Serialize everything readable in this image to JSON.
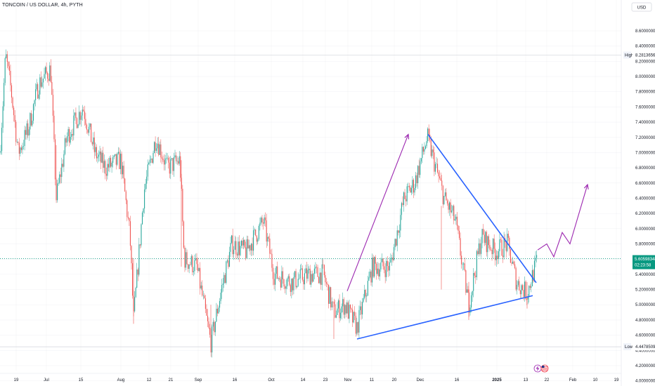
{
  "header": {
    "title": "TONCOIN / US DOLLAR, 4h, PYTH"
  },
  "currency": "USD",
  "colors": {
    "up": "#26a69a",
    "down": "#ef5350",
    "trendline": "#2962ff",
    "projection": "#9c27b0",
    "price_line": "#089981",
    "grid": "#e0e3eb"
  },
  "tags": {
    "high_label": "High",
    "high_value": "8.28136567",
    "low_label": "Low",
    "low_value": "4.44785095",
    "current_value": "5.60598348",
    "countdown": "02:23:58"
  },
  "event_icons": [
    "lightning-icon",
    "us-flag-icon"
  ],
  "chart_data": {
    "type": "candlestick",
    "title": "TONCOIN / US DOLLAR, 4h, PYTH",
    "y_axis": {
      "range": [
        4.0,
        8.7
      ],
      "ticks": [
        "8.60000000",
        "8.40000000",
        "8.20000000",
        "8.00000000",
        "7.80000000",
        "7.60000000",
        "7.40000000",
        "7.20000000",
        "7.00000000",
        "6.80000000",
        "6.60000000",
        "6.40000000",
        "6.20000000",
        "6.00000000",
        "5.80000000",
        "5.60000000",
        "5.40000000",
        "5.20000000",
        "5.00000000",
        "4.80000000",
        "4.60000000",
        "4.40000000",
        "4.20000000",
        "4.00000000"
      ],
      "tick_values": [
        8.6,
        8.4,
        8.2,
        8.0,
        7.8,
        7.6,
        7.4,
        7.2,
        7.0,
        6.8,
        6.6,
        6.4,
        6.2,
        6.0,
        5.8,
        5.6,
        5.4,
        5.2,
        5.0,
        4.8,
        4.6,
        4.4,
        4.2,
        4.0
      ]
    },
    "x_axis": {
      "labels": [
        "19",
        "Jul",
        "15",
        "Aug",
        "12",
        "21",
        "Sep",
        "16",
        "Oct",
        "14",
        "23",
        "Nov",
        "11",
        "20",
        "Dec",
        "16",
        "2025",
        "13",
        "22",
        "Feb",
        "10",
        "19"
      ],
      "bold": [
        "2025"
      ]
    },
    "high": 8.28136567,
    "low": 4.44785095,
    "last": 5.60598348,
    "price_path": [
      {
        "t": 0,
        "v": 7.0
      },
      {
        "t": 8,
        "v": 8.28
      },
      {
        "t": 16,
        "v": 7.8
      },
      {
        "t": 26,
        "v": 7.0
      },
      {
        "t": 40,
        "v": 7.3
      },
      {
        "t": 55,
        "v": 7.9
      },
      {
        "t": 72,
        "v": 8.1
      },
      {
        "t": 80,
        "v": 6.4
      },
      {
        "t": 95,
        "v": 7.2
      },
      {
        "t": 118,
        "v": 7.6
      },
      {
        "t": 135,
        "v": 7.0
      },
      {
        "t": 150,
        "v": 6.8
      },
      {
        "t": 172,
        "v": 6.9
      },
      {
        "t": 185,
        "v": 5.9
      },
      {
        "t": 190,
        "v": 4.8
      },
      {
        "t": 205,
        "v": 6.5
      },
      {
        "t": 222,
        "v": 7.2
      },
      {
        "t": 238,
        "v": 6.8
      },
      {
        "t": 256,
        "v": 6.9
      },
      {
        "t": 262,
        "v": 5.6
      },
      {
        "t": 280,
        "v": 5.5
      },
      {
        "t": 300,
        "v": 4.5
      },
      {
        "t": 315,
        "v": 5.2
      },
      {
        "t": 330,
        "v": 5.8
      },
      {
        "t": 350,
        "v": 5.7
      },
      {
        "t": 375,
        "v": 6.1
      },
      {
        "t": 390,
        "v": 5.4
      },
      {
        "t": 415,
        "v": 5.3
      },
      {
        "t": 440,
        "v": 5.4
      },
      {
        "t": 460,
        "v": 5.4
      },
      {
        "t": 475,
        "v": 4.9
      },
      {
        "t": 490,
        "v": 5.0
      },
      {
        "t": 508,
        "v": 4.7
      },
      {
        "t": 530,
        "v": 5.5
      },
      {
        "t": 555,
        "v": 5.5
      },
      {
        "t": 575,
        "v": 6.4
      },
      {
        "t": 590,
        "v": 6.6
      },
      {
        "t": 608,
        "v": 7.2
      },
      {
        "t": 620,
        "v": 6.8
      },
      {
        "t": 632,
        "v": 6.4
      },
      {
        "t": 648,
        "v": 6.1
      },
      {
        "t": 660,
        "v": 5.4
      },
      {
        "t": 667,
        "v": 5.0
      },
      {
        "t": 685,
        "v": 5.9
      },
      {
        "t": 705,
        "v": 5.7
      },
      {
        "t": 722,
        "v": 5.8
      },
      {
        "t": 735,
        "v": 5.3
      },
      {
        "t": 750,
        "v": 5.15
      },
      {
        "t": 765,
        "v": 5.6
      }
    ],
    "drawings": {
      "upper_trendline": [
        {
          "t": 609,
          "v": 7.24
        },
        {
          "t": 763,
          "v": 5.29
        }
      ],
      "lower_trendline": [
        {
          "t": 508,
          "v": 4.55
        },
        {
          "t": 758,
          "v": 5.12
        }
      ],
      "up_arrow": [
        {
          "t": 494,
          "v": 5.18
        },
        {
          "t": 581,
          "v": 7.24
        }
      ],
      "projection_path": [
        {
          "t": 765,
          "v": 5.72
        },
        {
          "t": 778,
          "v": 5.8
        },
        {
          "t": 788,
          "v": 5.63
        },
        {
          "t": 800,
          "v": 5.95
        },
        {
          "t": 811,
          "v": 5.8
        },
        {
          "t": 836,
          "v": 6.58
        }
      ]
    }
  }
}
